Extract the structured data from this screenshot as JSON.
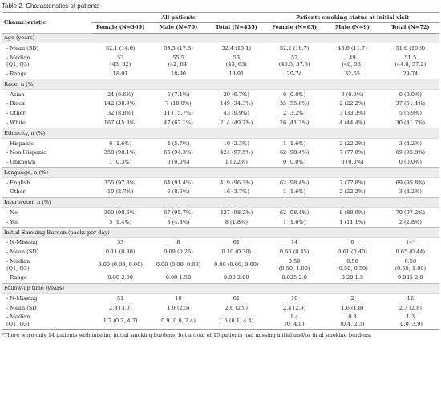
{
  "title": "Table 2. Characteristics of patients",
  "header": {
    "characteristic": "Characteristic",
    "group1": "All patients",
    "group2": "Patients smoking status at initial visit",
    "columns": [
      "Female (N=365)",
      "Male (N=70)",
      "Total (N=435)",
      "Female (N=63)",
      "Male (N=9)",
      "Total (N=72)"
    ]
  },
  "sections": [
    {
      "label": "Age (years)",
      "rows": [
        {
          "label": "- Mean (SD)",
          "cells": [
            "52.1 (14.6)",
            "53.5 (17.3)",
            "52.4 (15.1)",
            "52.2 (10.7)",
            "48.0 (11.7)",
            "51.6 (10.9)"
          ]
        },
        {
          "label": "- Median\n(Q1, Q3)",
          "cells": [
            "53\n(43, 62)",
            "55.5\n(42, 64)",
            "53\n(43, 63)",
            "52\n(45.5, 57.5)",
            "49\n(40, 53)",
            "51.5\n(44.8, 57.2)"
          ]
        },
        {
          "label": "- Range",
          "cells": [
            "18-91",
            "18-90",
            "18-91",
            "29-74",
            "32-65",
            "29-74"
          ]
        }
      ]
    },
    {
      "label": "Race, n (%)",
      "rows": [
        {
          "label": "- Asian",
          "cells": [
            "24 (6.6%)",
            "5 (7.1%)",
            "29 (6.7%)",
            "0 (0.0%)",
            "0 (0.0%)",
            "0 (0.0%)"
          ]
        },
        {
          "label": "- Black",
          "cells": [
            "142 (38.9%)",
            "7 (10.0%)",
            "149 (34.3%)",
            "35 (55.6%)",
            "2 (22.2%)",
            "37 (51.4%)"
          ]
        },
        {
          "label": "- Other",
          "cells": [
            "32 (8.8%)",
            "11 (15.7%)",
            "43 (9.9%)",
            "2 (3.2%)",
            "3 (33.3%)",
            "5 (6.9%)"
          ]
        },
        {
          "label": "- White",
          "cells": [
            "167 (45.8%)",
            "47 (67.1%)",
            "214 (49.2%)",
            "26 (41.3%)",
            "4 (44.4%)",
            "30 (41.7%)"
          ]
        }
      ]
    },
    {
      "label": "Ethnicity, n (%)",
      "rows": [
        {
          "label": "- Hispanic",
          "cells": [
            "6 (1.6%)",
            "4 (5.7%)",
            "10 (2.3%)",
            "1 (1.6%)",
            "2 (22.2%)",
            "3 (4.2%)"
          ]
        },
        {
          "label": "- Non-Hispanic",
          "cells": [
            "358 (98.1%)",
            "66 (94.3%)",
            "424 (97.5%)",
            "62 (98.4%)",
            "7 (77.8%)",
            "69 (95.8%)"
          ]
        },
        {
          "label": "- Unknown",
          "cells": [
            "1 (0.3%)",
            "0 (0.0%)",
            "1 (0.2%)",
            "0 (0.0%)",
            "0 (0.0%)",
            "0 (0.0%)"
          ]
        }
      ]
    },
    {
      "label": "Language, n (%)",
      "rows": [
        {
          "label": "- English",
          "cells": [
            "355 (97.3%)",
            "64 (91.4%)",
            "419 (96.3%)",
            "62 (98.4%)",
            "7 (77.8%)",
            "69 (95.8%)"
          ]
        },
        {
          "label": "- Other",
          "cells": [
            "10 (2.7%)",
            "6 (8.6%)",
            "16 (3.7%)",
            "1 (1.6%)",
            "2 (22.2%)",
            "3 (4.2%)"
          ]
        }
      ]
    },
    {
      "label": "Interpreter, n (%)",
      "rows": [
        {
          "label": "- No",
          "cells": [
            "360 (98.6%)",
            "67 (95.7%)",
            "427 (98.2%)",
            "62 (98.4%)",
            "8 (88.9%)",
            "70 (97.2%)"
          ]
        },
        {
          "label": "- Yes",
          "cells": [
            "5 (1.4%)",
            "3 (4.3%)",
            "8 (1.8%)",
            "1 (1.6%)",
            "1 (11.1%)",
            "2 (2.8%)"
          ]
        }
      ]
    },
    {
      "label": "Initial Smoking Burden (packs per day)",
      "rows": [
        {
          "label": "- N-Missing",
          "cells": [
            "53",
            "8",
            "61",
            "14",
            "0",
            "14*"
          ]
        },
        {
          "label": "- Mean (SD)",
          "cells": [
            "0.11 (0.30)",
            "0.09 (0.26)",
            "0.10 (0.30)",
            "0.66 (0.45)",
            "0.61 (0.40)",
            "0.65 (0.44)"
          ]
        },
        {
          "label": "- Median\n(Q1, Q3)",
          "cells": [
            "0.00 (0.00, 0.00)",
            "0.00 (0.00, 0.00)",
            "0.00 (0.00, 0.00)",
            "0.50\n(0.50, 1.00)",
            "0.50\n(0.50, 0.50)",
            "0.50\n(0.50, 1.00)"
          ]
        },
        {
          "label": "- Range",
          "cells": [
            "0.00-2.00",
            "0.00-1.50",
            "0.00-2.00",
            "0.025-2.0",
            "0.20-1.5",
            "0.025-2.0"
          ]
        }
      ]
    },
    {
      "label": "Follow-up time (years)",
      "rows": [
        {
          "label": "- N-Missing",
          "cells": [
            "51",
            "10",
            "61",
            "10",
            "2",
            "12"
          ]
        },
        {
          "label": "- Mean (SD)",
          "cells": [
            "2.8 (3.0)",
            "1.9 (2.5)",
            "2.6 (2.9)",
            "2.4 (2.9)",
            "1.6 (1.8)",
            "2.3 (2.8)"
          ]
        },
        {
          "label": "- Median\n(Q1, Q3)",
          "cells": [
            "1.7 (0.2, 4.7)",
            "0.9 (0.0, 2.4)",
            "1.5 (0.1, 4.4)",
            "1.4\n(0, 4.0)",
            "0.8\n(0.4, 2.3)",
            "1.3\n(0.0, 3.9)"
          ]
        }
      ]
    }
  ],
  "footnote": "*There were only 14 patients with missing initial smoking burdens, but a total of 15 patients had missing initial and/or final smoking burdens."
}
